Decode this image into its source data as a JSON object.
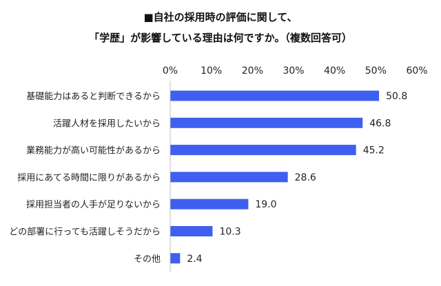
{
  "chart_data": {
    "type": "bar",
    "orientation": "horizontal",
    "title_lines": [
      "■自社の採用時の評価に関して、",
      "「学歴」が影響している理由は何ですか。（複数回答可）"
    ],
    "categories": [
      "基礎能力はあると判断できるから",
      "活躍人材を採用したいから",
      "業務能力が高い可能性があるから",
      "採用にあてる時間に限りがあるから",
      "採用担当者の人手が足りないから",
      "どの部署に行っても活躍しそうだから",
      "その他"
    ],
    "values": [
      50.8,
      46.8,
      45.2,
      28.6,
      19.0,
      10.3,
      2.4
    ],
    "value_labels": [
      "50.8",
      "46.8",
      "45.2",
      "28.6",
      "19.0",
      "10.3",
      "2.4"
    ],
    "x_ticks": [
      0,
      10,
      20,
      30,
      40,
      50,
      60
    ],
    "x_tick_labels": [
      "0%",
      "10%",
      "20%",
      "30%",
      "40%",
      "50%",
      "60%"
    ],
    "xlim": [
      0,
      60
    ],
    "axis_position": "top",
    "grid": false,
    "legend": "none",
    "bar_color": "#3F5FF0",
    "xlabel": "",
    "ylabel": ""
  }
}
